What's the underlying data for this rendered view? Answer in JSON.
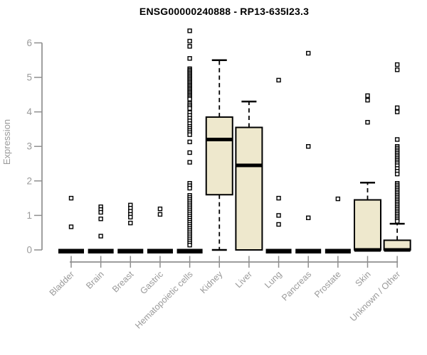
{
  "header": {
    "title": "ENSG00000240888 - RP13-635I23.3"
  },
  "chart_data": {
    "type": "boxplot",
    "title": "ENSG00000240888 - RP13-635I23.3",
    "ylabel": "Expression",
    "xlabel": "",
    "ylim": [
      0,
      6.4
    ],
    "yticks": [
      0,
      1,
      2,
      3,
      4,
      5,
      6
    ],
    "grid": false,
    "legend": "none",
    "categories": [
      "Bladder",
      "Brain",
      "Breast",
      "Gastric",
      "Hematopoietic cells",
      "Kidney",
      "Liver",
      "Lung",
      "Pancreas",
      "Prostate",
      "Skin",
      "Unknown / Other"
    ],
    "boxes": [
      {
        "category": "Bladder",
        "q1": 0,
        "median": 0,
        "q3": 0,
        "whisker_low": 0,
        "whisker_high": 0,
        "outliers": [
          1.5,
          0.67
        ]
      },
      {
        "category": "Brain",
        "q1": 0,
        "median": 0,
        "q3": 0,
        "whisker_low": 0,
        "whisker_high": 0,
        "outliers": [
          1.25,
          1.17,
          1.09,
          0.9,
          0.4
        ]
      },
      {
        "category": "Breast",
        "q1": 0,
        "median": 0,
        "q3": 0,
        "whisker_low": 0,
        "whisker_high": 0,
        "outliers": [
          1.3,
          1.21,
          1.12,
          1.03,
          0.95,
          0.78
        ]
      },
      {
        "category": "Gastric",
        "q1": 0,
        "median": 0,
        "q3": 0,
        "whisker_low": 0,
        "whisker_high": 0,
        "outliers": [
          1.19,
          1.03
        ]
      },
      {
        "category": "Hematopoietic cells",
        "q1": 0,
        "median": 0,
        "q3": 0,
        "whisker_low": 0,
        "whisker_high": 0,
        "outliers": [
          6.35,
          6.05,
          5.9,
          5.55,
          5.25,
          5.21,
          5.17,
          5.13,
          5.09,
          5.05,
          5.01,
          4.97,
          4.93,
          4.89,
          4.85,
          4.81,
          4.77,
          4.73,
          4.69,
          4.65,
          4.61,
          4.57,
          4.53,
          4.49,
          4.45,
          4.41,
          4.37,
          4.25,
          4.2,
          4.15,
          4.1,
          3.98,
          3.9,
          3.82,
          3.74,
          3.66,
          3.58,
          3.52,
          3.46,
          3.4,
          3.34,
          3.13,
          2.82,
          2.54,
          1.93,
          1.86,
          1.79,
          1.58,
          1.52,
          1.46,
          1.4,
          1.34,
          1.28,
          1.22,
          1.16,
          1.1,
          1.04,
          0.98,
          0.92,
          0.86,
          0.8,
          0.74,
          0.68,
          0.62,
          0.56,
          0.5,
          0.44,
          0.38,
          0.32,
          0.26,
          0.2,
          0.14
        ]
      },
      {
        "category": "Kidney",
        "q1": 1.6,
        "median": 3.2,
        "q3": 3.85,
        "whisker_low": 0,
        "whisker_high": 5.5,
        "outliers": []
      },
      {
        "category": "Liver",
        "q1": 0,
        "median": 2.45,
        "q3": 3.55,
        "whisker_low": 0,
        "whisker_high": 4.3,
        "outliers": []
      },
      {
        "category": "Lung",
        "q1": 0,
        "median": 0,
        "q3": 0,
        "whisker_low": 0,
        "whisker_high": 0,
        "outliers": [
          4.92,
          1.5,
          1.0,
          0.74
        ]
      },
      {
        "category": "Pancreas",
        "q1": 0,
        "median": 0,
        "q3": 0,
        "whisker_low": 0,
        "whisker_high": 0,
        "outliers": [
          5.7,
          3.0,
          0.93
        ]
      },
      {
        "category": "Prostate",
        "q1": 0,
        "median": 0,
        "q3": 0,
        "whisker_low": 0,
        "whisker_high": 0,
        "outliers": [
          1.48
        ]
      },
      {
        "category": "Skin",
        "q1": 0,
        "median": 0,
        "q3": 1.45,
        "whisker_low": 0,
        "whisker_high": 1.95,
        "outliers": [
          4.47,
          4.34,
          3.7
        ]
      },
      {
        "category": "Unknown / Other",
        "q1": 0,
        "median": 0,
        "q3": 0.28,
        "whisker_low": 0,
        "whisker_high": 0.76,
        "outliers": [
          5.37,
          5.22,
          4.12,
          4.0,
          3.2,
          3.0,
          2.95,
          2.9,
          2.85,
          2.8,
          2.75,
          2.7,
          2.65,
          2.6,
          2.55,
          2.5,
          2.44,
          2.36,
          2.28,
          2.2,
          1.93,
          1.88,
          1.83,
          1.78,
          1.73,
          1.68,
          1.63,
          1.58,
          1.53,
          1.48,
          1.43,
          1.38,
          1.33,
          1.28,
          1.23,
          1.18,
          1.13,
          1.08,
          1.03,
          0.98,
          0.93,
          0.88,
          0.83
        ]
      }
    ],
    "colors": {
      "box_fill": "#EEE8CD",
      "box_stroke": "#000000",
      "median": "#000000",
      "outlier_fill": "#ffffff",
      "outlier_stroke": "#000000",
      "axis": "#8f8f8f",
      "tick_label": "#9a9a9a",
      "title": "#000000"
    }
  }
}
